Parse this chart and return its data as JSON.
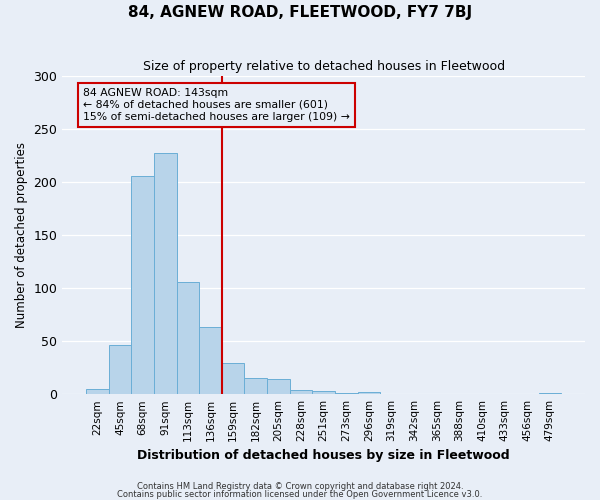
{
  "title": "84, AGNEW ROAD, FLEETWOOD, FY7 7BJ",
  "subtitle": "Size of property relative to detached houses in Fleetwood",
  "xlabel": "Distribution of detached houses by size in Fleetwood",
  "ylabel": "Number of detached properties",
  "bar_labels": [
    "22sqm",
    "45sqm",
    "68sqm",
    "91sqm",
    "113sqm",
    "136sqm",
    "159sqm",
    "182sqm",
    "205sqm",
    "228sqm",
    "251sqm",
    "273sqm",
    "296sqm",
    "319sqm",
    "342sqm",
    "365sqm",
    "388sqm",
    "410sqm",
    "433sqm",
    "456sqm",
    "479sqm"
  ],
  "bar_values": [
    5,
    46,
    205,
    227,
    106,
    63,
    29,
    15,
    14,
    4,
    3,
    1,
    2,
    0,
    0,
    0,
    0,
    0,
    0,
    0,
    1
  ],
  "bar_color": "#b8d4ea",
  "bar_edgecolor": "#6aaed6",
  "vline_x": 5.5,
  "vline_color": "#cc0000",
  "annotation_title": "84 AGNEW ROAD: 143sqm",
  "annotation_line1": "← 84% of detached houses are smaller (601)",
  "annotation_line2": "15% of semi-detached houses are larger (109) →",
  "annotation_box_edgecolor": "#cc0000",
  "ylim": [
    0,
    300
  ],
  "yticks": [
    0,
    50,
    100,
    150,
    200,
    250,
    300
  ],
  "footer1": "Contains HM Land Registry data © Crown copyright and database right 2024.",
  "footer2": "Contains public sector information licensed under the Open Government Licence v3.0.",
  "bg_color": "#e8eef7"
}
